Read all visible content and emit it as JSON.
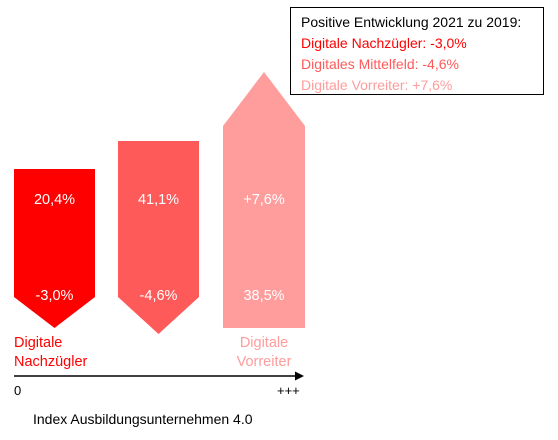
{
  "chart_data": {
    "type": "bar",
    "legend_title": "Positive Entwicklung 2021 zu 2019:",
    "legend_placement": "top-right",
    "categories": [
      {
        "label_lines": [
          "Digitale",
          "Nachzügler"
        ],
        "share": "20,4%",
        "change": "-3,0%",
        "legend": "Digitale Nachzügler: -3,0%",
        "color": "#ff0000"
      },
      {
        "label_lines": [
          "",
          ""
        ],
        "share": "41,1%",
        "change": "-4,6%",
        "legend": "Digitales Mittelfeld: -4,6%",
        "color": "#ff5a5a"
      },
      {
        "label_lines": [
          "Digitale",
          "Vorreiter"
        ],
        "share": "38,5%",
        "change": "+7,6%",
        "legend": "Digitale Vorreiter: +7,6%",
        "color": "#ff9c9c"
      }
    ],
    "x_axis": {
      "min_label": "0",
      "max_label": "+++",
      "label": "Index Ausbildungsunternehmen 4.0"
    }
  }
}
